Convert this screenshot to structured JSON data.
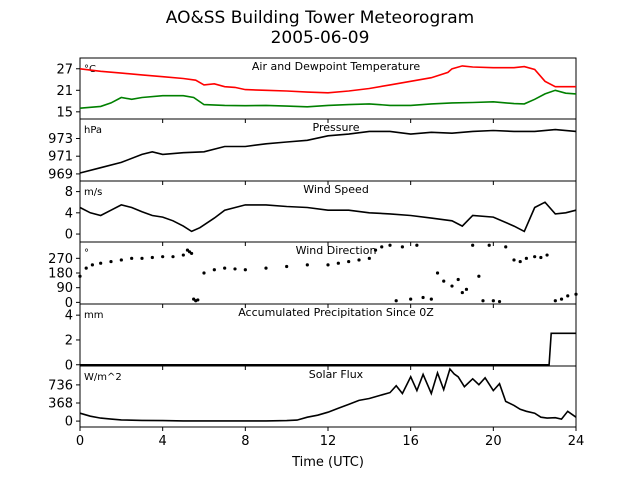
{
  "title": "AO&SS Building Tower Meteorogram",
  "subtitle": "2005-06-09",
  "xlabel": "Time (UTC)",
  "colors": {
    "temperature": "#ff0000",
    "dewpoint": "#008000",
    "line": "#000000"
  },
  "chart_data": [
    {
      "type": "line",
      "title": "Air and Dewpoint Temperature",
      "ylabel": "°C",
      "x_ticks": [
        0,
        4,
        8,
        12,
        16,
        20,
        24
      ],
      "y_ticks": [
        15,
        21,
        27
      ],
      "ylim": [
        13,
        30
      ],
      "xlim": [
        0,
        24
      ],
      "series": [
        {
          "color": "#ff0000",
          "x": [
            0,
            1,
            2,
            3,
            4,
            5,
            5.6,
            6,
            6.5,
            7,
            7.5,
            8,
            9,
            10,
            11,
            12,
            13,
            14,
            15,
            16,
            17,
            17.8,
            18,
            18.5,
            19,
            20,
            21,
            21.5,
            22,
            22.5,
            23,
            24
          ],
          "y": [
            27,
            26.3,
            25.8,
            25.3,
            24.8,
            24.3,
            23.8,
            22.5,
            22.8,
            22,
            21.8,
            21.2,
            21,
            20.8,
            20.5,
            20.3,
            20.8,
            21.5,
            22.5,
            23.5,
            24.5,
            26,
            27,
            27.8,
            27.5,
            27.3,
            27.3,
            27.6,
            26.8,
            23.5,
            22,
            22
          ]
        },
        {
          "color": "#008000",
          "x": [
            0,
            1,
            1.5,
            2,
            2.5,
            3,
            4,
            5,
            5.5,
            6,
            7,
            8,
            9,
            10,
            11,
            12,
            13,
            14,
            15,
            16,
            17,
            18,
            19,
            20,
            21,
            21.5,
            22,
            22.5,
            23,
            23.5,
            24
          ],
          "y": [
            16,
            16.5,
            17.5,
            19,
            18.5,
            19,
            19.5,
            19.5,
            19,
            17,
            16.8,
            16.7,
            16.8,
            16.6,
            16.4,
            16.8,
            17,
            17.2,
            16.8,
            16.8,
            17.2,
            17.5,
            17.6,
            17.8,
            17.3,
            17.2,
            18.5,
            20,
            21,
            20.2,
            20
          ]
        }
      ]
    },
    {
      "type": "line",
      "title": "Pressure",
      "ylabel": "hPa",
      "x_ticks": [
        0,
        4,
        8,
        12,
        16,
        20,
        24
      ],
      "y_ticks": [
        969,
        971,
        973
      ],
      "ylim": [
        968.2,
        975.2
      ],
      "xlim": [
        0,
        24
      ],
      "series": [
        {
          "color": "#000000",
          "x": [
            0,
            1,
            2,
            3,
            3.5,
            4,
            5,
            6,
            7,
            8,
            9,
            10,
            11,
            12,
            13,
            14,
            15,
            16,
            17,
            18,
            19,
            20,
            21,
            22,
            23,
            24
          ],
          "y": [
            969.1,
            969.7,
            970.3,
            971.2,
            971.5,
            971.2,
            971.4,
            971.5,
            972.1,
            972.1,
            972.4,
            972.6,
            972.8,
            973.3,
            973.5,
            973.8,
            973.8,
            973.5,
            973.7,
            973.6,
            973.8,
            973.9,
            973.8,
            973.8,
            974,
            973.8
          ]
        }
      ]
    },
    {
      "type": "line",
      "title": "Wind Speed",
      "ylabel": "m/s",
      "x_ticks": [
        0,
        4,
        8,
        12,
        16,
        20,
        24
      ],
      "y_ticks": [
        0,
        4,
        8
      ],
      "ylim": [
        -1.5,
        10
      ],
      "xlim": [
        0,
        24
      ],
      "series": [
        {
          "color": "#000000",
          "x": [
            0,
            0.5,
            1,
            1.5,
            2,
            2.5,
            3,
            3.5,
            4,
            4.5,
            5,
            5.4,
            5.8,
            6.5,
            7,
            8,
            9,
            10,
            11,
            12,
            13,
            14,
            15,
            16,
            17,
            18,
            18.5,
            19,
            20,
            21,
            21.5,
            22,
            22.5,
            23,
            23.5,
            24
          ],
          "y": [
            5,
            4,
            3.5,
            4.5,
            5.5,
            5,
            4.2,
            3.5,
            3.2,
            2.5,
            1.5,
            0.5,
            1.2,
            3,
            4.5,
            5.5,
            5.5,
            5.2,
            5,
            4.5,
            4.5,
            4,
            3.8,
            3.5,
            3,
            2.5,
            1.5,
            3.5,
            3.2,
            1.5,
            0.5,
            5,
            6,
            3.8,
            4,
            4.5
          ]
        }
      ]
    },
    {
      "type": "scatter",
      "title": "Wind Direction",
      "ylabel": "°",
      "x_ticks": [
        0,
        4,
        8,
        12,
        16,
        20,
        24
      ],
      "y_ticks": [
        0,
        90,
        180,
        270
      ],
      "ylim": [
        -10,
        370
      ],
      "xlim": [
        0,
        24
      ],
      "series": [
        {
          "color": "#000000",
          "x": [
            0,
            0.3,
            0.6,
            1,
            1.5,
            2,
            2.5,
            3,
            3.5,
            4,
            4.5,
            5,
            5.2,
            5.3,
            5.4,
            5.5,
            5.6,
            5.7,
            6,
            6.5,
            7,
            7.5,
            8,
            9,
            10,
            11,
            12,
            12.5,
            13,
            13.5,
            14,
            14.3,
            14.6,
            15,
            15.3,
            15.6,
            16,
            16.3,
            16.6,
            17,
            17.3,
            17.6,
            18,
            18.3,
            18.5,
            18.7,
            19,
            19.3,
            19.5,
            19.8,
            20,
            20.3,
            20.6,
            21,
            21.3,
            21.6,
            22,
            22.3,
            22.6,
            23,
            23.3,
            23.6,
            24
          ],
          "y": [
            160,
            210,
            230,
            240,
            250,
            260,
            270,
            270,
            275,
            280,
            280,
            290,
            320,
            310,
            300,
            20,
            10,
            15,
            180,
            200,
            210,
            205,
            200,
            210,
            220,
            230,
            230,
            240,
            250,
            260,
            270,
            320,
            340,
            350,
            10,
            340,
            20,
            350,
            30,
            20,
            180,
            130,
            100,
            140,
            60,
            80,
            350,
            160,
            10,
            350,
            10,
            5,
            340,
            260,
            250,
            270,
            280,
            275,
            290,
            10,
            20,
            40,
            50
          ]
        }
      ]
    },
    {
      "type": "line",
      "title": "Accumulated Precipitation Since 0Z",
      "ylabel": "mm",
      "x_ticks": [
        0,
        4,
        8,
        12,
        16,
        20,
        24
      ],
      "y_ticks": [
        0,
        2,
        4
      ],
      "ylim": [
        -0.1,
        4.9
      ],
      "xlim": [
        0,
        24
      ],
      "series": [
        {
          "color": "#000000",
          "x": [
            0,
            22.7,
            22.8,
            24
          ],
          "y": [
            0,
            0,
            2.54,
            2.54
          ]
        }
      ]
    },
    {
      "type": "line",
      "title": "Solar Flux",
      "ylabel": "W/m^2",
      "x_ticks": [
        0,
        4,
        8,
        12,
        16,
        20,
        24
      ],
      "y_ticks": [
        0,
        368,
        736
      ],
      "ylim": [
        -120,
        1120
      ],
      "xlim": [
        0,
        24
      ],
      "series": [
        {
          "color": "#000000",
          "x": [
            0,
            0.5,
            1,
            1.5,
            2,
            3,
            4,
            5,
            6,
            7,
            8,
            9,
            10,
            10.5,
            11,
            11.5,
            12,
            12.5,
            13,
            13.5,
            14,
            14.5,
            15,
            15.3,
            15.6,
            16,
            16.3,
            16.6,
            17,
            17.3,
            17.6,
            17.9,
            18.1,
            18.3,
            18.6,
            19,
            19.3,
            19.6,
            20,
            20.3,
            20.6,
            21,
            21.3,
            21.6,
            22,
            22.3,
            22.6,
            23,
            23.3,
            23.6,
            24
          ],
          "y": [
            160,
            100,
            60,
            40,
            25,
            15,
            10,
            5,
            5,
            5,
            5,
            5,
            10,
            20,
            80,
            120,
            180,
            260,
            340,
            420,
            460,
            520,
            580,
            720,
            560,
            900,
            620,
            950,
            560,
            980,
            640,
            1060,
            960,
            900,
            700,
            860,
            740,
            880,
            620,
            760,
            400,
            320,
            240,
            200,
            160,
            80,
            60,
            70,
            40,
            200,
            80
          ]
        }
      ]
    }
  ]
}
